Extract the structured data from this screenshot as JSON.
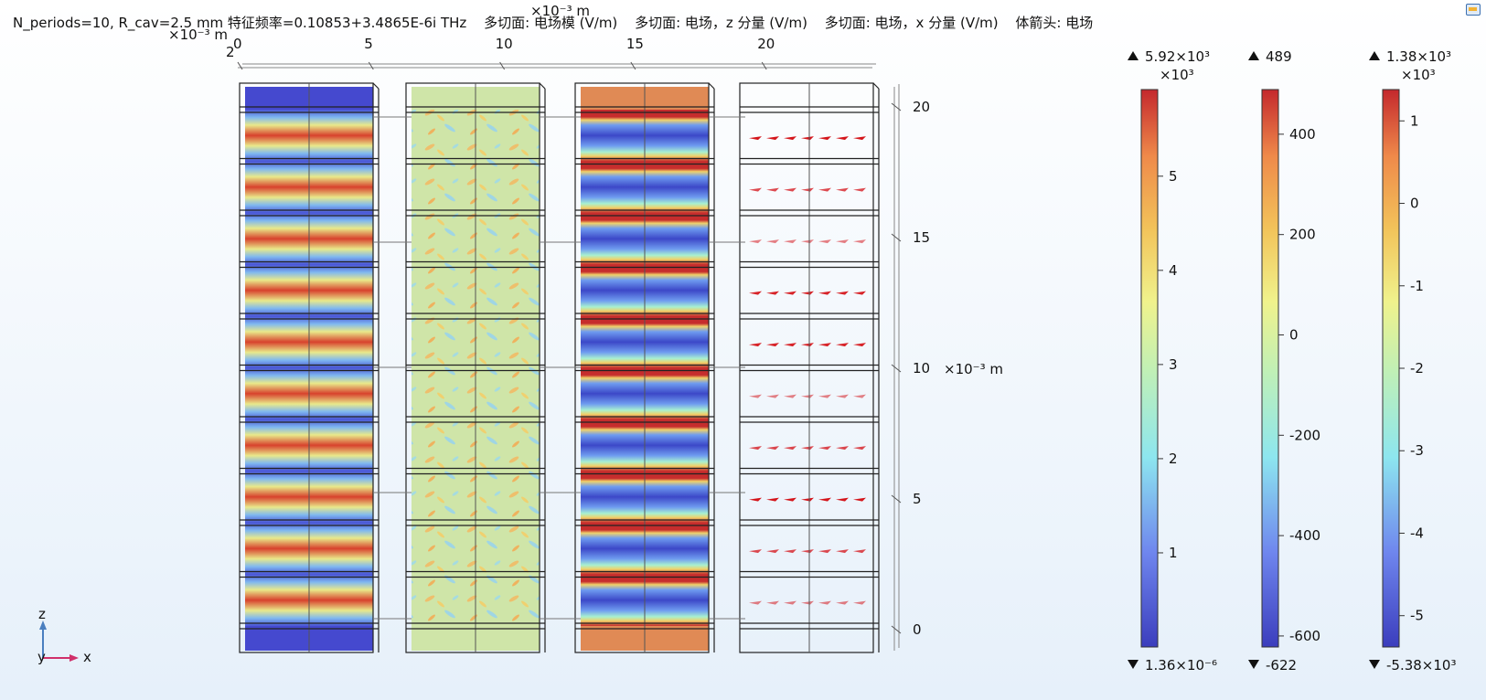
{
  "title": {
    "main": "N_periods=10, R_cav=2.5 mm 特征频率=0.10853+3.4865E-6i THz",
    "items": [
      "多切面: 电场模 (V/m)",
      "多切面: 电场，z 分量 (V/m)",
      "多切面: 电场，x 分量 (V/m)",
      "体箭头: 电场"
    ]
  },
  "x_axis": {
    "ticks": [
      "0",
      "5",
      "10",
      "15",
      "20"
    ],
    "unit_label": "×10⁻³ m",
    "left_unit_label": "×10⁻³ m",
    "left_tick": "2"
  },
  "z_axis": {
    "ticks": [
      "20",
      "15",
      "10",
      "5",
      "0"
    ],
    "unit_label": "×10⁻³ m"
  },
  "triad": {
    "z": "z",
    "y": "y",
    "x": "x"
  },
  "chart_data": {
    "type": "heatmap",
    "panels": [
      {
        "name": "多切面: 电场模 (V/m)",
        "quantity": "norm",
        "periods": 10
      },
      {
        "name": "多切面: 电场，z 分量 (V/m)",
        "quantity": "z-component",
        "periods": 10
      },
      {
        "name": "多切面: 电场，x 分量 (V/m)",
        "quantity": "x-component",
        "periods": 10
      },
      {
        "name": "体箭头: 电场",
        "quantity": "arrows",
        "periods": 10
      }
    ],
    "colorbars": [
      {
        "max_label": "5.92×10³",
        "min_label": "1.36×10⁻⁶",
        "scale_label": "×10³",
        "min": 0,
        "max": 5.92,
        "ticks": [
          1,
          2,
          3,
          4,
          5
        ],
        "tick_labels": [
          "1",
          "2",
          "3",
          "4",
          "5"
        ]
      },
      {
        "max_label": "489",
        "min_label": "-622",
        "scale_label": "",
        "min": -622,
        "max": 489,
        "ticks": [
          -600,
          -400,
          -200,
          0,
          200,
          400
        ],
        "tick_labels": [
          "-600",
          "-400",
          "-200",
          "0",
          "200",
          "400"
        ]
      },
      {
        "max_label": "1.38×10³",
        "min_label": "-5.38×10³",
        "scale_label": "×10³",
        "min": -5.38,
        "max": 1.38,
        "ticks": [
          -5,
          -4,
          -3,
          -2,
          -1,
          0,
          1
        ],
        "tick_labels": [
          "-5",
          "-4",
          "-3",
          "-2",
          "-1",
          "0",
          "1"
        ]
      }
    ],
    "colormap": "rainbow",
    "x_range": [
      0,
      24
    ],
    "z_range": [
      -0.5,
      20.5
    ]
  }
}
